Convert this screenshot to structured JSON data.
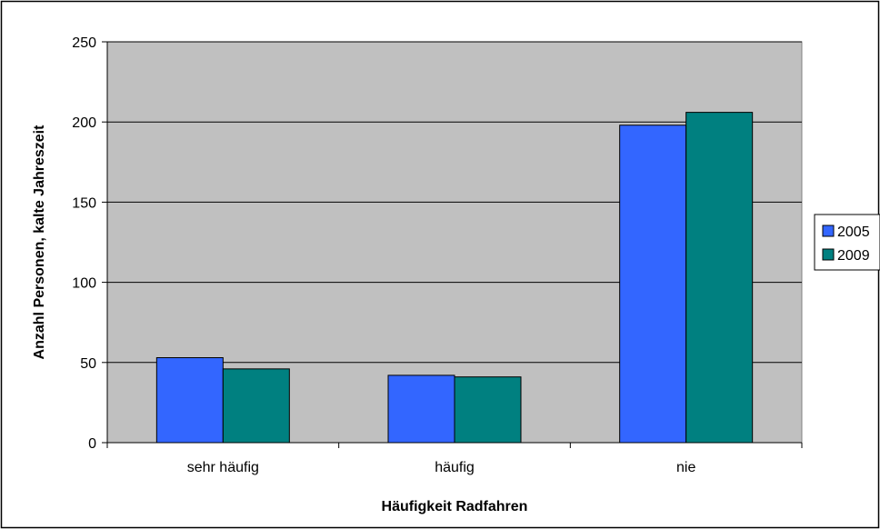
{
  "chart_data": {
    "type": "bar",
    "title": "",
    "xlabel": "Häufigkeit Radfahren",
    "ylabel": "Anzahl Personen, kalte Jahreszeit",
    "categories": [
      "sehr häufig",
      "häufig",
      "nie"
    ],
    "series": [
      {
        "name": "2005",
        "values": [
          53,
          42,
          198
        ]
      },
      {
        "name": "2009",
        "values": [
          46,
          41,
          206
        ]
      }
    ],
    "ylim": [
      0,
      250
    ],
    "yticks": [
      0,
      50,
      100,
      150,
      200,
      250
    ],
    "grid": true,
    "legend": "right"
  },
  "colors": {
    "plot_background": "#C0C0C0",
    "series": [
      "#3366FF",
      "#008080"
    ],
    "gridline": "#000000"
  }
}
